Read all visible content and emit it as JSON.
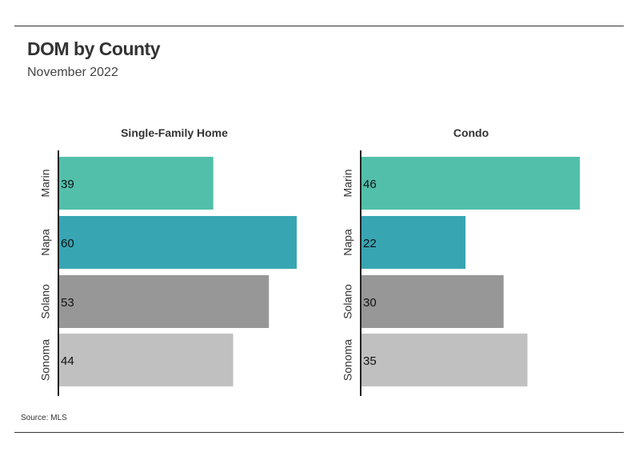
{
  "header": {
    "title": "DOM by County",
    "subtitle": "November 2022"
  },
  "footer": {
    "source": "Source: MLS"
  },
  "chart_data": [
    {
      "type": "bar",
      "orientation": "horizontal",
      "title": "Single-Family Home",
      "categories": [
        "Marin",
        "Napa",
        "Solano",
        "Sonoma"
      ],
      "values": [
        39,
        60,
        53,
        44
      ],
      "colors": [
        "#52bfab",
        "#38a5b3",
        "#979797",
        "#c0c0c0"
      ],
      "xlim": [
        0,
        60
      ]
    },
    {
      "type": "bar",
      "orientation": "horizontal",
      "title": "Condo",
      "categories": [
        "Marin",
        "Napa",
        "Solano",
        "Sonoma"
      ],
      "values": [
        46,
        22,
        30,
        35
      ],
      "colors": [
        "#52bfab",
        "#38a5b3",
        "#979797",
        "#c0c0c0"
      ],
      "xlim": [
        0,
        46
      ]
    }
  ]
}
